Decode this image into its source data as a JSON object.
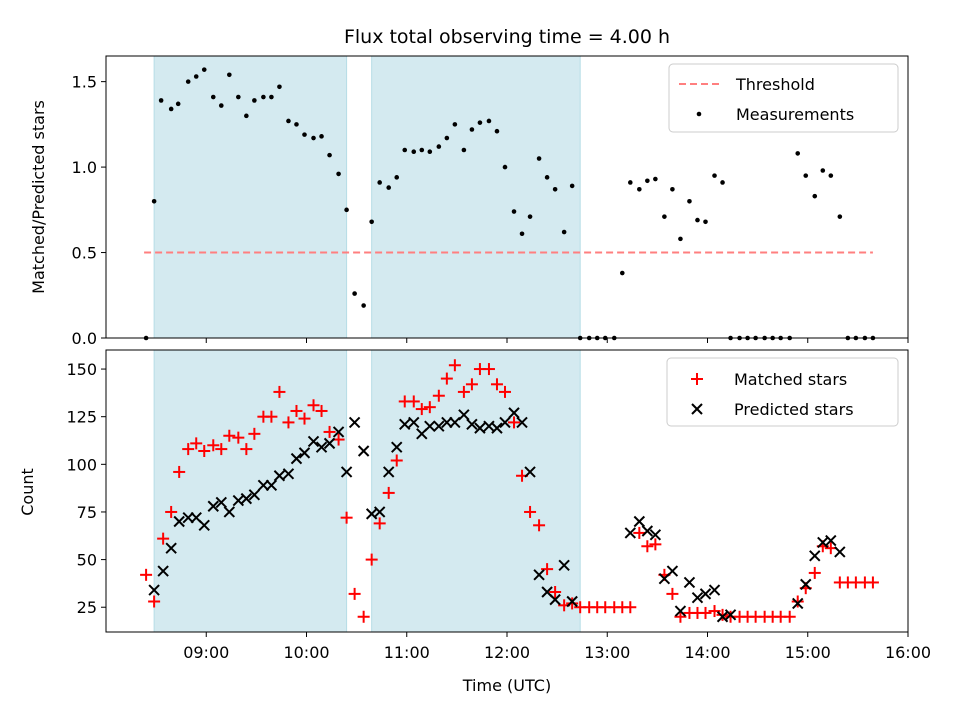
{
  "chart_data": [
    {
      "type": "scatter",
      "title": "Flux total observing time = 4.00 h",
      "xlabel": "",
      "ylabel": "Matched/Predicted stars",
      "xlim": [
        8.0,
        16.0
      ],
      "ylim": [
        0.0,
        1.65
      ],
      "yticks": [
        {
          "value": 0.0,
          "label": "0.0"
        },
        {
          "value": 0.5,
          "label": "0.5"
        },
        {
          "value": 1.0,
          "label": "1.0"
        },
        {
          "value": 1.5,
          "label": "1.5"
        }
      ],
      "shaded_spans": [
        [
          8.48,
          10.4
        ],
        [
          10.65,
          12.73
        ]
      ],
      "shade_color": "#d4eaf0",
      "threshold": {
        "name": "Threshold",
        "value": 0.5,
        "x_range": [
          8.38,
          15.65
        ],
        "color": "#ff7f7f"
      },
      "legend": {
        "position": "top-right",
        "entries": [
          "Threshold",
          "Measurements"
        ]
      },
      "series": [
        {
          "name": "Measurements",
          "marker": "dot",
          "color": "#000000",
          "points": [
            [
              8.4,
              0.0
            ],
            [
              8.48,
              0.8
            ],
            [
              8.55,
              1.39
            ],
            [
              8.65,
              1.34
            ],
            [
              8.72,
              1.37
            ],
            [
              8.82,
              1.5
            ],
            [
              8.9,
              1.53
            ],
            [
              8.98,
              1.57
            ],
            [
              9.07,
              1.41
            ],
            [
              9.15,
              1.36
            ],
            [
              9.23,
              1.54
            ],
            [
              9.32,
              1.41
            ],
            [
              9.4,
              1.3
            ],
            [
              9.48,
              1.39
            ],
            [
              9.57,
              1.41
            ],
            [
              9.65,
              1.41
            ],
            [
              9.73,
              1.47
            ],
            [
              9.82,
              1.27
            ],
            [
              9.9,
              1.25
            ],
            [
              9.98,
              1.19
            ],
            [
              10.07,
              1.17
            ],
            [
              10.15,
              1.18
            ],
            [
              10.23,
              1.07
            ],
            [
              10.32,
              0.96
            ],
            [
              10.4,
              0.75
            ],
            [
              10.48,
              0.26
            ],
            [
              10.57,
              0.19
            ],
            [
              10.65,
              0.68
            ],
            [
              10.73,
              0.91
            ],
            [
              10.82,
              0.88
            ],
            [
              10.9,
              0.94
            ],
            [
              10.98,
              1.1
            ],
            [
              11.07,
              1.09
            ],
            [
              11.15,
              1.1
            ],
            [
              11.23,
              1.09
            ],
            [
              11.32,
              1.12
            ],
            [
              11.4,
              1.17
            ],
            [
              11.48,
              1.25
            ],
            [
              11.57,
              1.1
            ],
            [
              11.65,
              1.22
            ],
            [
              11.73,
              1.26
            ],
            [
              11.82,
              1.27
            ],
            [
              11.9,
              1.21
            ],
            [
              11.98,
              1.0
            ],
            [
              12.07,
              0.74
            ],
            [
              12.15,
              0.61
            ],
            [
              12.23,
              0.71
            ],
            [
              12.32,
              1.05
            ],
            [
              12.4,
              0.94
            ],
            [
              12.48,
              0.87
            ],
            [
              12.57,
              0.62
            ],
            [
              12.65,
              0.89
            ],
            [
              12.73,
              0.0
            ],
            [
              12.82,
              0.0
            ],
            [
              12.9,
              0.0
            ],
            [
              12.98,
              0.0
            ],
            [
              13.07,
              0.0
            ],
            [
              13.15,
              0.38
            ],
            [
              13.23,
              0.91
            ],
            [
              13.32,
              0.87
            ],
            [
              13.4,
              0.92
            ],
            [
              13.48,
              0.93
            ],
            [
              13.57,
              0.71
            ],
            [
              13.65,
              0.87
            ],
            [
              13.73,
              0.58
            ],
            [
              13.82,
              0.8
            ],
            [
              13.9,
              0.69
            ],
            [
              13.98,
              0.68
            ],
            [
              14.07,
              0.95
            ],
            [
              14.15,
              0.91
            ],
            [
              14.23,
              0.0
            ],
            [
              14.32,
              0.0
            ],
            [
              14.4,
              0.0
            ],
            [
              14.48,
              0.0
            ],
            [
              14.57,
              0.0
            ],
            [
              14.65,
              0.0
            ],
            [
              14.73,
              0.0
            ],
            [
              14.82,
              0.0
            ],
            [
              14.9,
              1.08
            ],
            [
              14.98,
              0.95
            ],
            [
              15.07,
              0.83
            ],
            [
              15.15,
              0.98
            ],
            [
              15.23,
              0.95
            ],
            [
              15.32,
              0.71
            ],
            [
              15.4,
              0.0
            ],
            [
              15.48,
              0.0
            ],
            [
              15.57,
              0.0
            ],
            [
              15.65,
              0.0
            ]
          ]
        }
      ]
    },
    {
      "type": "scatter",
      "title": "",
      "xlabel": "Time (UTC)",
      "ylabel": "Count",
      "xlim": [
        8.0,
        16.0
      ],
      "ylim": [
        12,
        160
      ],
      "xticks": [
        {
          "value": 9,
          "label": "09:00"
        },
        {
          "value": 10,
          "label": "10:00"
        },
        {
          "value": 11,
          "label": "11:00"
        },
        {
          "value": 12,
          "label": "12:00"
        },
        {
          "value": 13,
          "label": "13:00"
        },
        {
          "value": 14,
          "label": "14:00"
        },
        {
          "value": 15,
          "label": "15:00"
        },
        {
          "value": 16,
          "label": "16:00"
        }
      ],
      "yticks": [
        {
          "value": 25,
          "label": "25"
        },
        {
          "value": 50,
          "label": "50"
        },
        {
          "value": 75,
          "label": "75"
        },
        {
          "value": 100,
          "label": "100"
        },
        {
          "value": 125,
          "label": "125"
        },
        {
          "value": 150,
          "label": "150"
        }
      ],
      "shaded_spans": [
        [
          8.48,
          10.4
        ],
        [
          10.65,
          12.73
        ]
      ],
      "shade_color": "#d4eaf0",
      "legend": {
        "position": "top-right",
        "entries": [
          "Matched stars",
          "Predicted stars"
        ]
      },
      "series": [
        {
          "name": "Matched stars",
          "marker": "plus",
          "color": "#ff0000",
          "points": [
            [
              8.4,
              42
            ],
            [
              8.48,
              28
            ],
            [
              8.57,
              61
            ],
            [
              8.65,
              75
            ],
            [
              8.73,
              96
            ],
            [
              8.82,
              108
            ],
            [
              8.9,
              111
            ],
            [
              8.98,
              107
            ],
            [
              9.07,
              110
            ],
            [
              9.15,
              108
            ],
            [
              9.23,
              115
            ],
            [
              9.32,
              114
            ],
            [
              9.4,
              108
            ],
            [
              9.48,
              116
            ],
            [
              9.57,
              125
            ],
            [
              9.65,
              125
            ],
            [
              9.73,
              138
            ],
            [
              9.82,
              122
            ],
            [
              9.9,
              128
            ],
            [
              9.98,
              124
            ],
            [
              10.07,
              131
            ],
            [
              10.15,
              128
            ],
            [
              10.23,
              117
            ],
            [
              10.32,
              113
            ],
            [
              10.4,
              72
            ],
            [
              10.48,
              32
            ],
            [
              10.57,
              20
            ],
            [
              10.65,
              50
            ],
            [
              10.73,
              69
            ],
            [
              10.82,
              85
            ],
            [
              10.9,
              102
            ],
            [
              10.98,
              133
            ],
            [
              11.07,
              133
            ],
            [
              11.15,
              129
            ],
            [
              11.23,
              130
            ],
            [
              11.32,
              136
            ],
            [
              11.4,
              145
            ],
            [
              11.48,
              152
            ],
            [
              11.57,
              138
            ],
            [
              11.65,
              142
            ],
            [
              11.73,
              150
            ],
            [
              11.82,
              150
            ],
            [
              11.9,
              142
            ],
            [
              11.98,
              138
            ],
            [
              12.07,
              122
            ],
            [
              12.15,
              94
            ],
            [
              12.23,
              75
            ],
            [
              12.32,
              68
            ],
            [
              12.4,
              45
            ],
            [
              12.48,
              33
            ],
            [
              12.57,
              26
            ],
            [
              12.65,
              27
            ],
            [
              12.73,
              25
            ],
            [
              12.82,
              25
            ],
            [
              12.9,
              25
            ],
            [
              12.98,
              25
            ],
            [
              13.07,
              25
            ],
            [
              13.15,
              25
            ],
            [
              13.23,
              25
            ],
            [
              13.32,
              64
            ],
            [
              13.4,
              57
            ],
            [
              13.48,
              58
            ],
            [
              13.57,
              42
            ],
            [
              13.65,
              32
            ],
            [
              13.73,
              20
            ],
            [
              13.82,
              22
            ],
            [
              13.9,
              22
            ],
            [
              13.98,
              22
            ],
            [
              14.07,
              23
            ],
            [
              14.15,
              21
            ],
            [
              14.23,
              20
            ],
            [
              14.32,
              20
            ],
            [
              14.4,
              20
            ],
            [
              14.48,
              20
            ],
            [
              14.57,
              20
            ],
            [
              14.65,
              20
            ],
            [
              14.73,
              20
            ],
            [
              14.82,
              20
            ],
            [
              14.9,
              28
            ],
            [
              14.98,
              35
            ],
            [
              15.07,
              43
            ],
            [
              15.15,
              57
            ],
            [
              15.23,
              56
            ],
            [
              15.32,
              38
            ],
            [
              15.4,
              38
            ],
            [
              15.48,
              38
            ],
            [
              15.57,
              38
            ],
            [
              15.65,
              38
            ]
          ]
        },
        {
          "name": "Predicted stars",
          "marker": "x",
          "color": "#000000",
          "points": [
            [
              8.48,
              34
            ],
            [
              8.57,
              44
            ],
            [
              8.65,
              56
            ],
            [
              8.73,
              70
            ],
            [
              8.82,
              72
            ],
            [
              8.9,
              72
            ],
            [
              8.98,
              68
            ],
            [
              9.07,
              78
            ],
            [
              9.15,
              80
            ],
            [
              9.23,
              75
            ],
            [
              9.32,
              81
            ],
            [
              9.4,
              82
            ],
            [
              9.48,
              84
            ],
            [
              9.57,
              89
            ],
            [
              9.65,
              89
            ],
            [
              9.73,
              94
            ],
            [
              9.82,
              95
            ],
            [
              9.9,
              103
            ],
            [
              9.98,
              106
            ],
            [
              10.07,
              112
            ],
            [
              10.15,
              109
            ],
            [
              10.23,
              111
            ],
            [
              10.32,
              117
            ],
            [
              10.4,
              96
            ],
            [
              10.48,
              122
            ],
            [
              10.57,
              107
            ],
            [
              10.65,
              74
            ],
            [
              10.73,
              75
            ],
            [
              10.82,
              96
            ],
            [
              10.9,
              109
            ],
            [
              10.98,
              121
            ],
            [
              11.07,
              122
            ],
            [
              11.15,
              116
            ],
            [
              11.23,
              120
            ],
            [
              11.32,
              120
            ],
            [
              11.4,
              122
            ],
            [
              11.48,
              122
            ],
            [
              11.57,
              126
            ],
            [
              11.65,
              121
            ],
            [
              11.73,
              119
            ],
            [
              11.82,
              120
            ],
            [
              11.9,
              119
            ],
            [
              11.98,
              122
            ],
            [
              12.07,
              127
            ],
            [
              12.15,
              122
            ],
            [
              12.23,
              96
            ],
            [
              12.32,
              42
            ],
            [
              12.4,
              33
            ],
            [
              12.48,
              29
            ],
            [
              12.57,
              47
            ],
            [
              12.65,
              28
            ],
            [
              13.23,
              64
            ],
            [
              13.32,
              70
            ],
            [
              13.4,
              65
            ],
            [
              13.48,
              63
            ],
            [
              13.57,
              40
            ],
            [
              13.65,
              44
            ],
            [
              13.73,
              23
            ],
            [
              13.82,
              38
            ],
            [
              13.9,
              30
            ],
            [
              13.98,
              32
            ],
            [
              14.07,
              34
            ],
            [
              14.15,
              20
            ],
            [
              14.23,
              21
            ],
            [
              14.9,
              27
            ],
            [
              14.98,
              37
            ],
            [
              15.07,
              52
            ],
            [
              15.15,
              59
            ],
            [
              15.23,
              60
            ],
            [
              15.32,
              54
            ]
          ]
        }
      ]
    }
  ]
}
